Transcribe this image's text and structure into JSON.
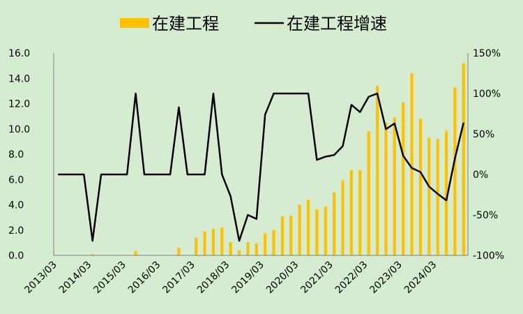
{
  "chart_data": {
    "type": "bar+line",
    "title": "",
    "legend": {
      "placement": "top-center",
      "items": [
        {
          "label": "在建工程",
          "kind": "bar",
          "color": "#ffc000"
        },
        {
          "label": "在建工程增速",
          "kind": "line",
          "color": "#000000"
        }
      ]
    },
    "y_left": {
      "min": 0,
      "max": 16,
      "step": 2,
      "ticks": [
        "0.0",
        "2.0",
        "4.0",
        "6.0",
        "8.0",
        "10.0",
        "12.0",
        "14.0",
        "16.0"
      ]
    },
    "y_right": {
      "min": -100,
      "max": 150,
      "step": 50,
      "ticks": [
        "-100%",
        "-50%",
        "0%",
        "50%",
        "100%",
        "150%"
      ]
    },
    "x_labels": [
      "2013/03",
      "2014/03",
      "2015/03",
      "2016/03",
      "2017/03",
      "2018/03",
      "2019/03",
      "2020/03",
      "2021/03",
      "2022/03",
      "2023/03",
      "2024/03"
    ],
    "grid": false,
    "series": [
      {
        "name": "在建工程",
        "kind": "bar",
        "axis": "left",
        "color": "#ffc000",
        "values": [
          0,
          0,
          0,
          0,
          0.1,
          0,
          0,
          0,
          0,
          0.35,
          0,
          0,
          0,
          0,
          0.6,
          0,
          1.4,
          1.9,
          2.1,
          2.2,
          1.05,
          0.4,
          1.05,
          0.95,
          1.75,
          2.0,
          3.1,
          3.15,
          4.0,
          4.4,
          3.65,
          3.85,
          5.0,
          5.95,
          6.75,
          6.75,
          9.8,
          13.4,
          10.5,
          10.9,
          12.1,
          14.4,
          10.8,
          9.3,
          9.2,
          9.85,
          13.3,
          15.2
        ]
      },
      {
        "name": "在建工程增速",
        "kind": "line",
        "axis": "right",
        "color": "#000000",
        "values": [
          0,
          0,
          0,
          0,
          -82,
          0,
          0,
          0,
          0,
          100,
          0,
          0,
          0,
          0,
          83,
          0,
          0,
          0,
          100,
          0,
          -27,
          -82,
          -50,
          -55,
          74,
          100,
          100,
          100,
          100,
          100,
          18,
          22,
          24,
          35,
          86,
          77,
          96,
          100,
          56,
          63,
          23,
          8,
          3,
          -15,
          -24,
          -32,
          20,
          64
        ]
      }
    ]
  }
}
